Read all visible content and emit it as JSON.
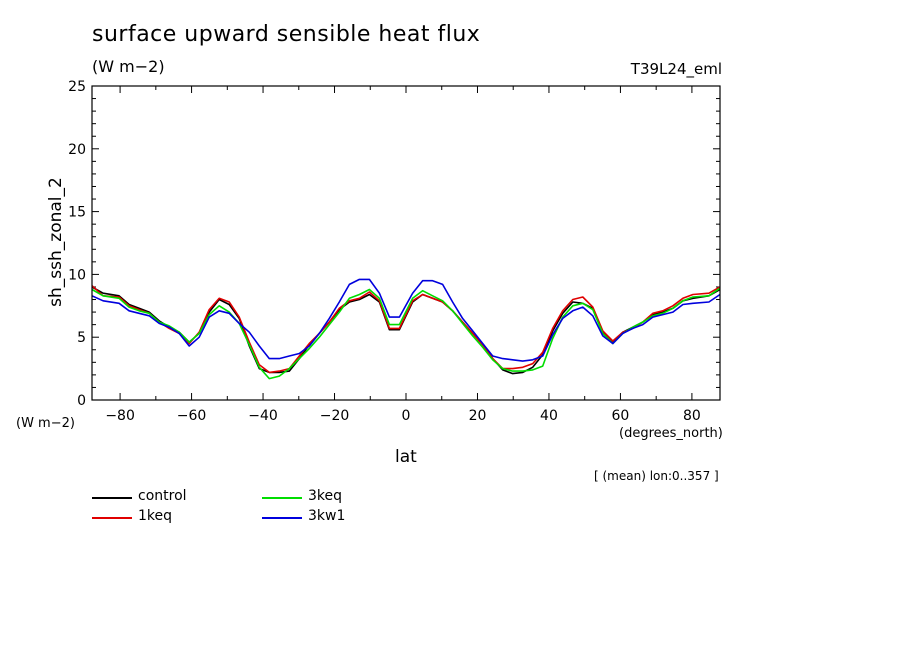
{
  "header": {
    "title": "surface upward sensible heat flux",
    "subtitle": "(W m−2)",
    "run_label": "T39L24_eml"
  },
  "axes": {
    "y_label": "sh_ssh_zonal_2",
    "y_unit": "(W m−2)",
    "x_label": "lat",
    "x_unit": "(degrees_north)",
    "note": "[ (mean) lon:0..357 ]"
  },
  "chart_data": {
    "type": "line",
    "title": "surface upward sensible heat flux",
    "subtitle": "(W m−2)",
    "xlabel": "lat",
    "ylabel": "sh_ssh_zonal_2",
    "xlim": [
      -87.86,
      87.86
    ],
    "ylim": [
      0,
      25
    ],
    "xticks": [
      -80,
      -60,
      -40,
      -20,
      0,
      20,
      40,
      60,
      80
    ],
    "yticks": [
      0,
      5,
      10,
      15,
      20,
      25
    ],
    "grid": false,
    "legend_position": "bottom-left",
    "x": [
      -87.86,
      -84.75,
      -80.27,
      -77.47,
      -74.67,
      -71.86,
      -69.06,
      -66.26,
      -63.46,
      -60.66,
      -57.86,
      -55.06,
      -52.26,
      -49.46,
      -46.66,
      -43.86,
      -41.06,
      -38.26,
      -35.46,
      -32.66,
      -29.86,
      -27.06,
      -24.25,
      -21.45,
      -18.65,
      -15.85,
      -13.05,
      -10.25,
      -7.45,
      -4.65,
      -1.85,
      1.85,
      4.65,
      7.45,
      10.25,
      13.05,
      15.85,
      18.65,
      21.45,
      24.25,
      27.06,
      29.86,
      32.66,
      35.46,
      38.26,
      41.06,
      43.86,
      46.66,
      49.46,
      52.26,
      55.06,
      57.86,
      60.66,
      63.46,
      66.26,
      69.06,
      71.86,
      74.67,
      77.47,
      80.27,
      84.75,
      87.86
    ],
    "series": [
      {
        "name": "control",
        "color": "#000000",
        "values": [
          9.0,
          8.5,
          8.3,
          7.6,
          7.3,
          7.0,
          6.3,
          5.8,
          5.4,
          4.6,
          5.3,
          7.0,
          8.0,
          7.6,
          6.5,
          4.3,
          2.5,
          2.2,
          2.2,
          2.3,
          3.3,
          4.4,
          5.3,
          6.2,
          7.2,
          7.8,
          8.0,
          8.4,
          7.8,
          5.6,
          5.6,
          7.8,
          8.4,
          8.1,
          7.8,
          7.1,
          6.2,
          5.3,
          4.4,
          3.3,
          2.4,
          2.1,
          2.2,
          2.6,
          3.6,
          5.5,
          6.9,
          7.8,
          7.7,
          7.3,
          5.4,
          4.6,
          5.4,
          5.8,
          6.2,
          6.8,
          7.0,
          7.3,
          7.9,
          8.1,
          8.3,
          8.8
        ]
      },
      {
        "name": "1keq",
        "color": "#e00000",
        "values": [
          9.1,
          8.3,
          8.2,
          7.5,
          7.2,
          6.9,
          6.2,
          5.7,
          5.3,
          4.5,
          5.4,
          7.2,
          8.1,
          7.8,
          6.6,
          4.6,
          2.8,
          2.2,
          2.3,
          2.5,
          3.5,
          4.5,
          5.3,
          6.2,
          7.3,
          7.9,
          8.1,
          8.6,
          7.9,
          5.7,
          5.7,
          7.9,
          8.4,
          8.1,
          7.8,
          7.1,
          6.2,
          5.3,
          4.4,
          3.3,
          2.5,
          2.5,
          2.6,
          2.9,
          3.8,
          5.7,
          7.1,
          8.0,
          8.2,
          7.4,
          5.5,
          4.7,
          5.4,
          5.7,
          6.2,
          6.9,
          7.1,
          7.5,
          8.1,
          8.4,
          8.5,
          9.0
        ]
      },
      {
        "name": "3keq",
        "color": "#00dd00",
        "values": [
          8.8,
          8.3,
          8.1,
          7.4,
          7.1,
          6.9,
          6.2,
          5.9,
          5.4,
          4.6,
          5.3,
          6.8,
          7.5,
          7.0,
          6.1,
          4.4,
          2.6,
          1.7,
          1.9,
          2.5,
          3.3,
          4.1,
          5.0,
          6.0,
          7.0,
          8.1,
          8.4,
          8.8,
          8.1,
          6.0,
          6.0,
          8.1,
          8.7,
          8.3,
          7.9,
          7.1,
          6.1,
          5.1,
          4.2,
          3.2,
          2.5,
          2.3,
          2.3,
          2.4,
          2.7,
          4.9,
          6.6,
          7.5,
          7.7,
          7.2,
          5.3,
          4.5,
          5.3,
          5.8,
          6.2,
          6.7,
          6.9,
          7.3,
          7.9,
          8.2,
          8.3,
          8.9
        ]
      },
      {
        "name": "3kw1",
        "color": "#0000dd",
        "values": [
          8.3,
          7.9,
          7.7,
          7.1,
          6.9,
          6.7,
          6.1,
          5.8,
          5.3,
          4.3,
          5.0,
          6.6,
          7.1,
          6.9,
          6.1,
          5.4,
          4.3,
          3.3,
          3.3,
          3.5,
          3.7,
          4.3,
          5.3,
          6.5,
          7.8,
          9.2,
          9.6,
          9.6,
          8.5,
          6.6,
          6.6,
          8.5,
          9.5,
          9.5,
          9.2,
          7.8,
          6.5,
          5.5,
          4.5,
          3.5,
          3.3,
          3.2,
          3.1,
          3.2,
          3.5,
          5.2,
          6.5,
          7.1,
          7.4,
          6.7,
          5.1,
          4.5,
          5.3,
          5.7,
          6.0,
          6.6,
          6.8,
          7.0,
          7.6,
          7.7,
          7.8,
          8.4
        ]
      }
    ]
  }
}
